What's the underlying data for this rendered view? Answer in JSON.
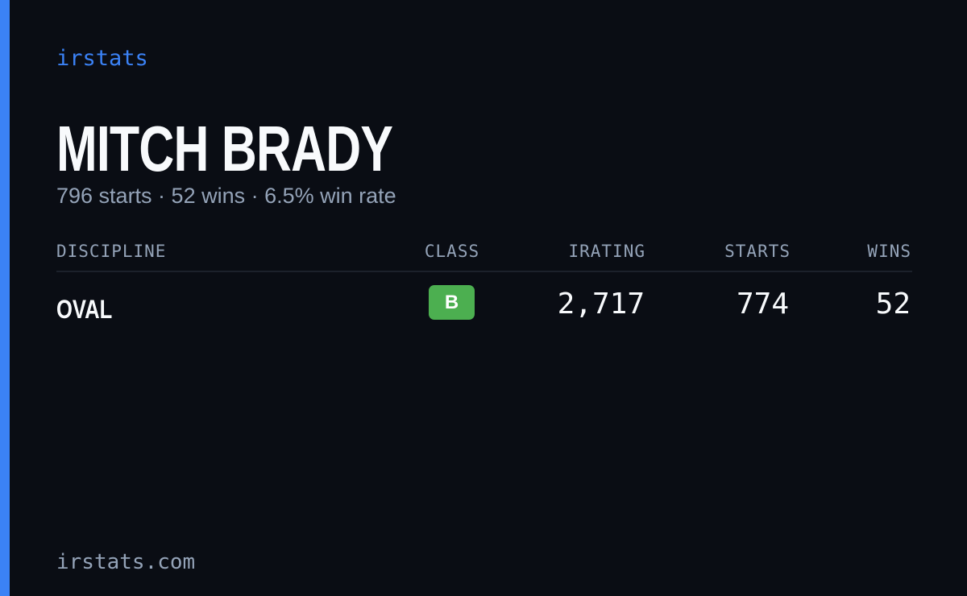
{
  "header": {
    "brand": "irstats",
    "name": "MITCH BRADY",
    "summary": "796 starts · 52 wins · 6.5% win rate"
  },
  "table": {
    "columns": [
      "DISCIPLINE",
      "CLASS",
      "IRATING",
      "STARTS",
      "WINS"
    ],
    "rows": [
      [
        "OVAL",
        "B",
        "2,717",
        "774",
        "52"
      ]
    ]
  },
  "footer": {
    "url": "irstats.com"
  }
}
